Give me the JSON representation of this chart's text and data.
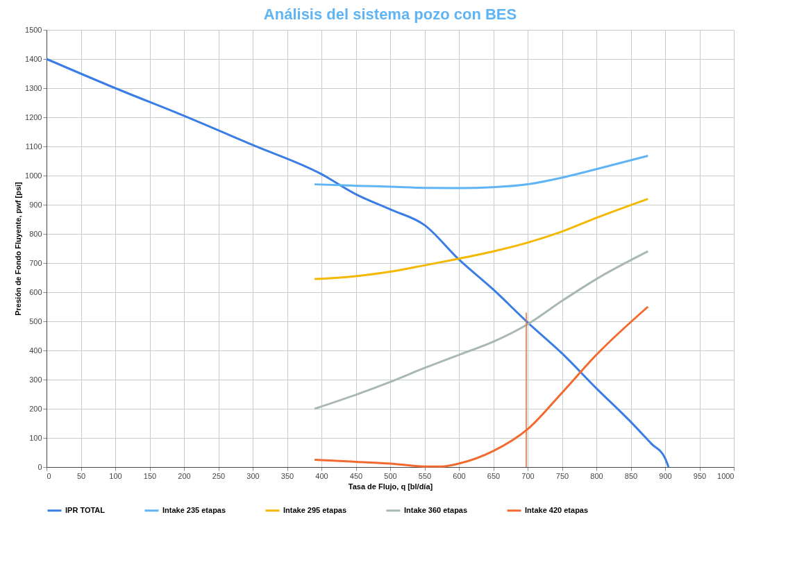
{
  "chart_data": {
    "type": "line",
    "title": "Análisis del sistema pozo con BES",
    "xlabel": "Tasa de Flujo, q [bl/día]",
    "ylabel": "Presión de Fondo Fluyente, pwf [psi]",
    "xlim": [
      0,
      1000
    ],
    "xticks": [
      0,
      50,
      100,
      150,
      200,
      250,
      300,
      350,
      400,
      450,
      500,
      550,
      600,
      650,
      700,
      750,
      800,
      850,
      900,
      950,
      1000
    ],
    "ylim": [
      0,
      1500
    ],
    "yticks": [
      0,
      100,
      200,
      300,
      400,
      500,
      600,
      700,
      800,
      900,
      1000,
      1100,
      1200,
      1300,
      1400,
      1500
    ],
    "grid": true,
    "legend": "bottom",
    "line_style": "solid",
    "marker": "none",
    "series": [
      {
        "name": "IPR TOTAL",
        "color": "#3a7de6",
        "x": [
          0,
          100,
          200,
          300,
          400,
          450,
          500,
          550,
          600,
          650,
          700,
          750,
          800,
          850,
          880,
          900,
          905
        ],
        "values": [
          1400,
          1300,
          1205,
          1105,
          1005,
          936,
          884,
          830,
          712,
          609,
          496,
          390,
          270,
          155,
          80,
          30,
          0
        ]
      },
      {
        "name": "Intake 235 etapas",
        "color": "#5fb4f5",
        "x": [
          390,
          450,
          500,
          550,
          600,
          650,
          700,
          750,
          800,
          875
        ],
        "values": [
          970,
          965,
          962,
          958,
          957,
          960,
          970,
          993,
          1022,
          1068
        ]
      },
      {
        "name": "Intake 295 etapas",
        "color": "#f5b800",
        "x": [
          390,
          450,
          500,
          550,
          600,
          650,
          700,
          750,
          800,
          875
        ],
        "values": [
          645,
          655,
          670,
          692,
          715,
          740,
          770,
          808,
          855,
          920
        ]
      },
      {
        "name": "Intake 360 etapas",
        "color": "#a9b8b2",
        "x": [
          390,
          450,
          500,
          550,
          600,
          650,
          700,
          750,
          800,
          875
        ],
        "values": [
          200,
          248,
          292,
          340,
          385,
          430,
          490,
          570,
          645,
          740
        ]
      },
      {
        "name": "Intake 420 etapas",
        "color": "#f26a2f",
        "x": [
          390,
          450,
          500,
          550,
          575,
          600,
          650,
          700,
          750,
          800,
          875
        ],
        "values": [
          25,
          18,
          12,
          2,
          2,
          12,
          55,
          130,
          255,
          385,
          550
        ]
      },
      {
        "color": "#f26a2f",
        "x": [
          698,
          698
        ],
        "values": [
          0,
          530
        ]
      }
    ]
  }
}
